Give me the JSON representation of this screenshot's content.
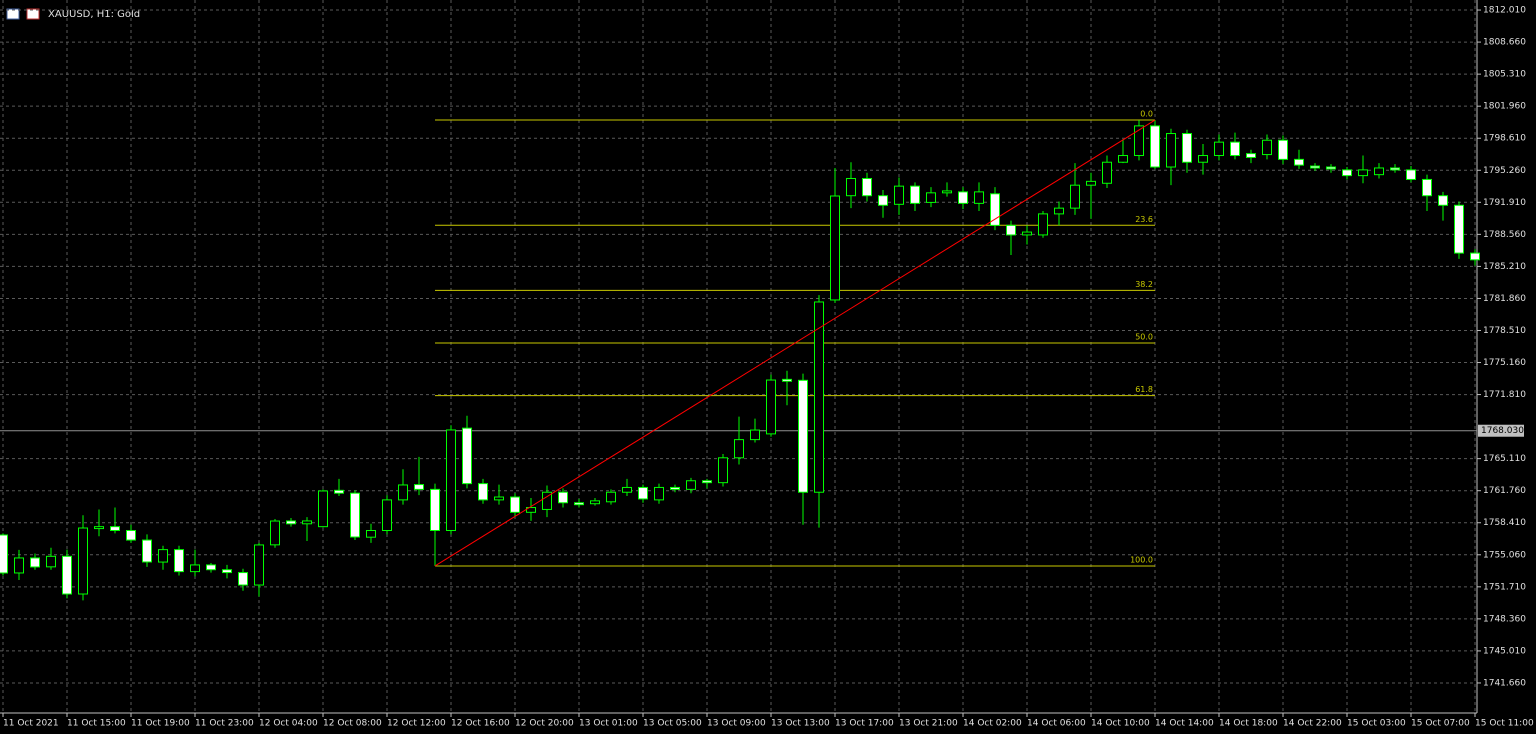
{
  "chart_data": {
    "type": "candlestick",
    "title": "XAUUSD, H1:  Gold",
    "categories": [
      "11 Oct 2021",
      null,
      null,
      null,
      "11 Oct 15:00",
      null,
      null,
      null,
      "11 Oct 19:00",
      null,
      null,
      null,
      "11 Oct 23:00",
      null,
      null,
      null,
      "12 Oct 04:00",
      null,
      null,
      null,
      "12 Oct 08:00",
      null,
      null,
      null,
      "12 Oct 12:00",
      null,
      null,
      null,
      "12 Oct 16:00",
      null,
      null,
      null,
      "12 Oct 20:00",
      null,
      null,
      null,
      "13 Oct 01:00",
      null,
      null,
      null,
      "13 Oct 05:00",
      null,
      null,
      null,
      "13 Oct 09:00",
      null,
      null,
      null,
      "13 Oct 13:00",
      null,
      null,
      null,
      "13 Oct 17:00",
      null,
      null,
      null,
      "13 Oct 21:00",
      null,
      null,
      null,
      "14 Oct 02:00",
      null,
      null,
      null,
      "14 Oct 06:00",
      null,
      null,
      null,
      "14 Oct 10:00",
      null,
      null,
      null,
      "14 Oct 14:00",
      null,
      null,
      null,
      "14 Oct 18:00",
      null,
      null,
      null,
      "14 Oct 22:00",
      null,
      null,
      null,
      "15 Oct 03:00",
      null,
      null,
      null,
      "15 Oct 07:00",
      null,
      null,
      null,
      "15 Oct 11:00"
    ],
    "open": [
      1757.13,
      1753.16,
      1754.73,
      1753.8,
      1754.9,
      1750.96,
      1757.8,
      1758.0,
      1757.6,
      1756.6,
      1754.3,
      1755.6,
      1753.3,
      1754.0,
      1753.5,
      1753.2,
      1751.9,
      1756.1,
      1758.6,
      1758.3,
      1758.0,
      1761.8,
      1761.5,
      1756.9,
      1757.6,
      1760.8,
      1762.4,
      1761.9,
      1757.6,
      1768.3,
      1762.5,
      1760.8,
      1761.1,
      1759.5,
      1759.8,
      1761.6,
      1760.5,
      1760.4,
      1760.6,
      1761.6,
      1762.1,
      1760.8,
      1762.1,
      1761.9,
      1762.8,
      1762.6,
      1765.2,
      1767.1,
      1767.7,
      1773.4,
      1773.3,
      1761.6,
      1781.7,
      1792.6,
      1794.4,
      1792.6,
      1791.7,
      1793.6,
      1791.9,
      1792.9,
      1793.0,
      1791.8,
      1792.8,
      1789.5,
      1788.5,
      1788.5,
      1790.7,
      1791.3,
      1793.7,
      1793.9,
      1796.1,
      1796.8,
      1799.9,
      1795.6,
      1799.1,
      1796.1,
      1796.8,
      1798.2,
      1797.0,
      1796.9,
      1798.4,
      1796.4,
      1795.7,
      1795.6,
      1795.3,
      1794.7,
      1794.8,
      1795.5,
      1795.3,
      1794.3,
      1792.6,
      1791.6,
      1786.6
    ],
    "high": [
      1757.3,
      1755.57,
      1755.2,
      1755.8,
      1755.6,
      1759.2,
      1759.8,
      1760.0,
      1758.2,
      1757.2,
      1756.0,
      1756.0,
      1755.6,
      1754.2,
      1754.0,
      1753.6,
      1756.3,
      1758.8,
      1758.9,
      1759.0,
      1761.9,
      1763.0,
      1761.8,
      1758.3,
      1761.3,
      1764.0,
      1765.3,
      1762.5,
      1768.6,
      1769.6,
      1763.0,
      1762.4,
      1761.5,
      1761.0,
      1762.3,
      1762.0,
      1760.9,
      1761.0,
      1761.9,
      1763.0,
      1762.4,
      1762.5,
      1762.4,
      1763.1,
      1763.0,
      1765.6,
      1769.5,
      1769.3,
      1773.9,
      1774.3,
      1774.0,
      1782.2,
      1795.5,
      1796.1,
      1795.0,
      1793.2,
      1794.5,
      1794.0,
      1793.5,
      1794.0,
      1793.5,
      1794.0,
      1793.5,
      1790.0,
      1789.5,
      1791.0,
      1792.0,
      1796.0,
      1795.0,
      1796.8,
      1798.5,
      1800.5,
      1800.51,
      1799.6,
      1799.5,
      1798.0,
      1799.0,
      1799.2,
      1797.4,
      1799.0,
      1798.9,
      1797.4,
      1796.0,
      1795.9,
      1795.6,
      1796.8,
      1796.0,
      1795.9,
      1795.7,
      1794.8,
      1793.0,
      1792.0,
      1787.0
    ],
    "low": [
      1752.9,
      1752.43,
      1753.5,
      1753.5,
      1750.5,
      1750.3,
      1757.0,
      1757.3,
      1756.3,
      1753.8,
      1753.5,
      1752.9,
      1752.8,
      1753.2,
      1752.6,
      1751.3,
      1750.7,
      1755.8,
      1758.0,
      1756.5,
      1757.9,
      1761.2,
      1756.6,
      1756.3,
      1757.2,
      1760.3,
      1761.3,
      1753.89,
      1757.2,
      1762.0,
      1760.4,
      1760.3,
      1759.0,
      1758.6,
      1759.0,
      1760.0,
      1760.0,
      1760.2,
      1760.3,
      1761.2,
      1760.5,
      1760.4,
      1761.6,
      1761.5,
      1762.0,
      1762.2,
      1764.5,
      1766.8,
      1767.4,
      1770.7,
      1758.2,
      1757.9,
      1781.4,
      1791.3,
      1792.0,
      1790.3,
      1790.6,
      1791.0,
      1791.4,
      1792.5,
      1791.2,
      1791.0,
      1789.0,
      1786.4,
      1787.5,
      1788.2,
      1789.5,
      1790.6,
      1790.2,
      1793.4,
      1796.0,
      1796.3,
      1795.4,
      1793.7,
      1795.0,
      1794.8,
      1796.3,
      1796.4,
      1796.0,
      1796.4,
      1795.9,
      1795.4,
      1795.2,
      1795.0,
      1794.3,
      1793.9,
      1794.4,
      1795.0,
      1794.0,
      1791.0,
      1790.0,
      1786.0,
      1785.3
    ],
    "close": [
      1753.16,
      1754.73,
      1753.79,
      1754.9,
      1750.96,
      1757.86,
      1758.0,
      1757.6,
      1756.6,
      1754.31,
      1755.6,
      1753.3,
      1754.0,
      1753.5,
      1753.2,
      1751.9,
      1756.09,
      1758.59,
      1758.3,
      1758.6,
      1761.73,
      1761.5,
      1756.92,
      1757.6,
      1760.8,
      1762.36,
      1761.9,
      1757.6,
      1768.11,
      1762.5,
      1760.8,
      1761.1,
      1759.5,
      1760.0,
      1761.6,
      1760.5,
      1760.3,
      1760.7,
      1761.6,
      1762.1,
      1760.9,
      1762.1,
      1761.9,
      1762.8,
      1762.6,
      1765.2,
      1767.1,
      1768.1,
      1773.33,
      1773.2,
      1761.6,
      1781.49,
      1792.57,
      1794.4,
      1792.6,
      1791.6,
      1793.6,
      1791.8,
      1792.9,
      1793.1,
      1791.8,
      1793.0,
      1789.5,
      1788.5,
      1788.8,
      1790.7,
      1791.3,
      1793.7,
      1794.1,
      1796.1,
      1796.8,
      1799.9,
      1795.6,
      1799.1,
      1796.1,
      1796.8,
      1798.2,
      1796.8,
      1796.6,
      1798.4,
      1796.4,
      1795.8,
      1795.5,
      1795.4,
      1794.7,
      1795.3,
      1795.5,
      1795.3,
      1794.3,
      1792.6,
      1791.6,
      1786.6,
      1785.9
    ],
    "ylim": [
      1738.52,
      1813.06
    ],
    "yticks": [
      {
        "value": 1812.01,
        "label": "1812.010"
      },
      {
        "value": 1808.66,
        "label": "1808.660"
      },
      {
        "value": 1805.31,
        "label": "1805.310"
      },
      {
        "value": 1801.96,
        "label": "1801.960"
      },
      {
        "value": 1798.61,
        "label": "1798.610"
      },
      {
        "value": 1795.26,
        "label": "1795.260"
      },
      {
        "value": 1791.91,
        "label": "1791.910"
      },
      {
        "value": 1788.56,
        "label": "1788.560"
      },
      {
        "value": 1785.21,
        "label": "1785.210"
      },
      {
        "value": 1781.86,
        "label": "1781.860"
      },
      {
        "value": 1778.51,
        "label": "1778.510"
      },
      {
        "value": 1775.16,
        "label": "1775.160"
      },
      {
        "value": 1771.81,
        "label": "1771.810"
      },
      {
        "value": 1765.11,
        "label": "1765.110"
      },
      {
        "value": 1761.76,
        "label": "1761.760"
      },
      {
        "value": 1758.41,
        "label": "1758.410"
      },
      {
        "value": 1755.06,
        "label": "1755.060"
      },
      {
        "value": 1751.71,
        "label": "1751.710"
      },
      {
        "value": 1748.36,
        "label": "1748.360"
      },
      {
        "value": 1745.01,
        "label": "1745.010"
      },
      {
        "value": 1741.66,
        "label": "1741.660"
      }
    ],
    "grid": true,
    "bull_color": "#000000",
    "bear_color": "#ffffff",
    "wick_color": "#00ff00",
    "current_price": {
      "value": 1768.03,
      "label": "1768.030"
    },
    "fibonacci": {
      "color": "#c8c800",
      "line_color": "#ff0000",
      "levels": [
        {
          "label": "0.0",
          "price": 1800.51
        },
        {
          "label": "23.6",
          "price": 1789.51
        },
        {
          "label": "38.2",
          "price": 1782.7
        },
        {
          "label": "50.0",
          "price": 1777.2
        },
        {
          "label": "61.8",
          "price": 1771.7
        },
        {
          "label": "100.0",
          "price": 1753.89
        }
      ]
    }
  }
}
